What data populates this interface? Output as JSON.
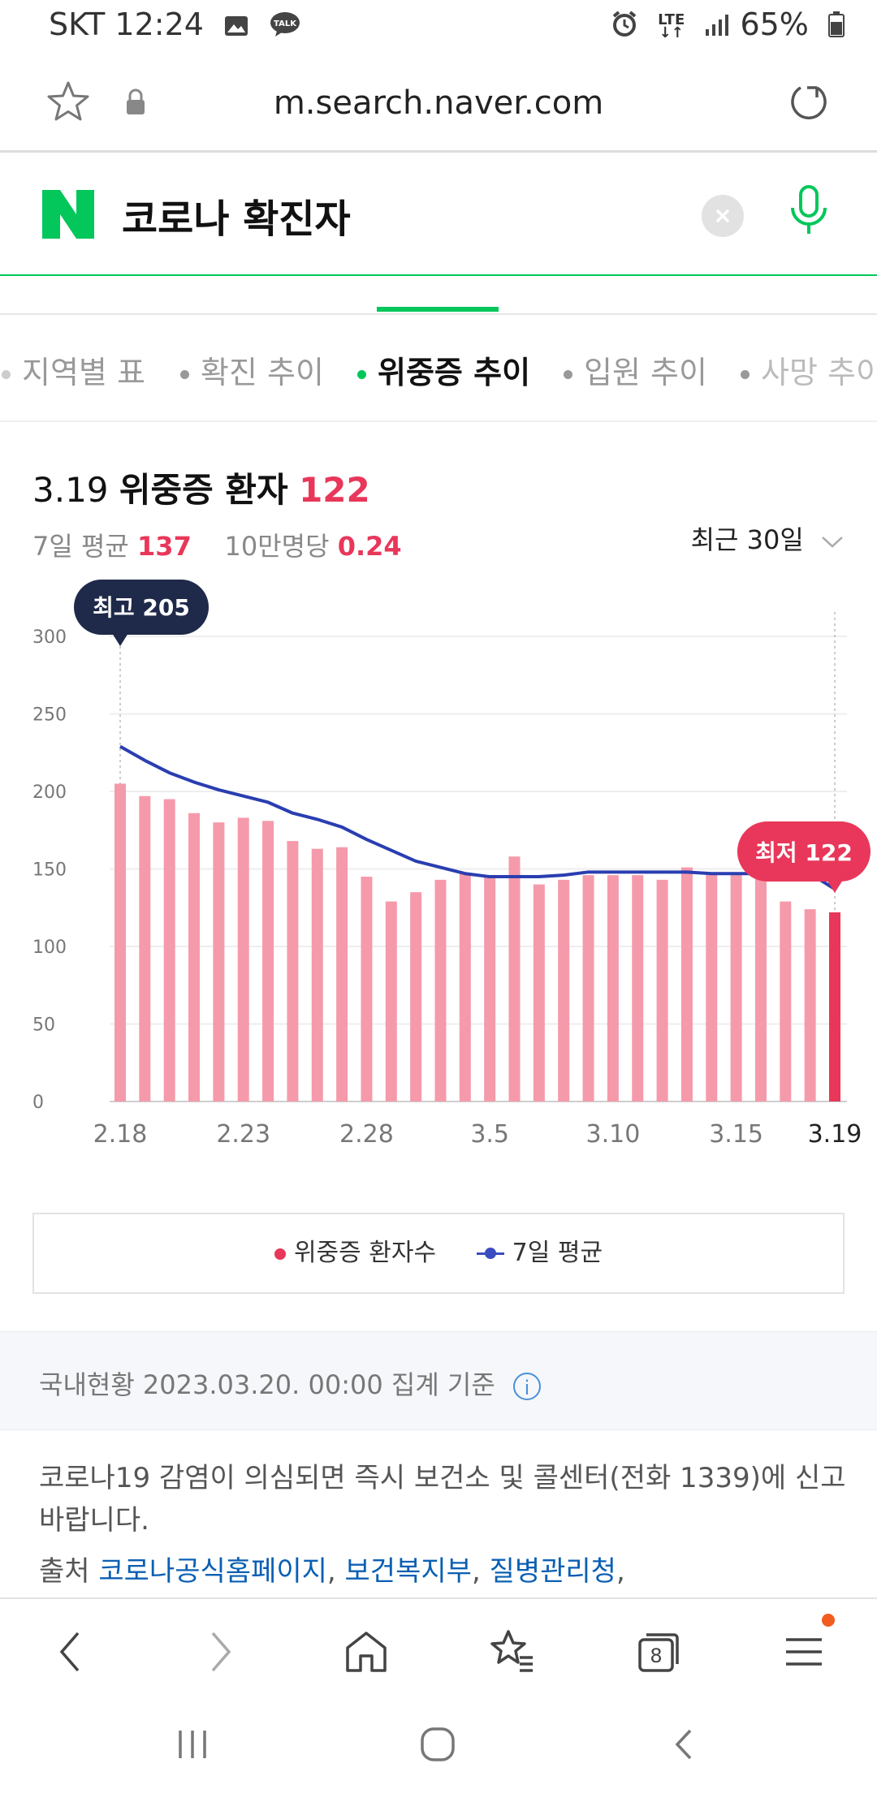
{
  "status_bar": {
    "carrier": "SKT",
    "time": "12:24",
    "network": "LTE",
    "battery": "65%"
  },
  "address_bar": {
    "url": "m.search.naver.com"
  },
  "search": {
    "logo": "N",
    "query": "코로나 확진자"
  },
  "sub_tabs": [
    {
      "label": "지역별 표"
    },
    {
      "label": "확진 추이"
    },
    {
      "label": "위중증 추이",
      "active": true
    },
    {
      "label": "입원 추이"
    },
    {
      "label": "사망 추이"
    }
  ],
  "stats": {
    "date": "3.19",
    "label": "위중증 환자",
    "value": "122",
    "avg_label": "7일 평균",
    "avg_value": "137",
    "per100k_label": "10만명당",
    "per100k_value": "0.24",
    "period": "최근 30일"
  },
  "chart_data": {
    "type": "bar",
    "categories": [
      "2.18",
      "2.19",
      "2.20",
      "2.21",
      "2.22",
      "2.23",
      "2.24",
      "2.25",
      "2.26",
      "2.27",
      "2.28",
      "3.1",
      "3.2",
      "3.3",
      "3.4",
      "3.5",
      "3.6",
      "3.7",
      "3.8",
      "3.9",
      "3.10",
      "3.11",
      "3.12",
      "3.13",
      "3.14",
      "3.15",
      "3.16",
      "3.17",
      "3.18",
      "3.19"
    ],
    "x_tick_labels": [
      "2.18",
      "2.23",
      "2.28",
      "3.5",
      "3.10",
      "3.15",
      "3.19"
    ],
    "series": [
      {
        "name": "위중증 환자수",
        "type": "bar",
        "color": "#f59aaa",
        "highlight_color": "#e8375a",
        "values": [
          205,
          197,
          195,
          186,
          180,
          183,
          181,
          168,
          163,
          164,
          145,
          129,
          135,
          143,
          147,
          145,
          158,
          140,
          143,
          146,
          146,
          146,
          143,
          151,
          147,
          146,
          150,
          129,
          124,
          122
        ]
      },
      {
        "name": "7일 평균",
        "type": "line",
        "color": "#2a3eb1",
        "values": [
          229,
          220,
          212,
          206,
          201,
          197,
          193,
          186,
          182,
          177,
          169,
          162,
          155,
          151,
          147,
          145,
          145,
          145,
          146,
          148,
          148,
          148,
          148,
          148,
          147,
          147,
          147,
          147,
          147,
          137
        ]
      }
    ],
    "ylim": [
      0,
      300
    ],
    "y_ticks": [
      "0",
      "50",
      "100",
      "150",
      "200",
      "250",
      "300"
    ],
    "annotations": {
      "max_label": "최고 205",
      "min_label": "최저 122"
    }
  },
  "legend": {
    "bar_label": "위중증 환자수",
    "line_label": "7일 평균"
  },
  "info": {
    "status": "국내현황 2023.03.20. 00:00 집계 기준",
    "notice": "코로나19 감염이 의심되면 즉시 보건소 및 콜센터(전화 1339)에 신고 바랍니다.",
    "source_label": "출처",
    "sources": [
      "코로나공식홈페이지",
      "보건복지부",
      "질병관리청"
    ]
  },
  "toolbar": {
    "tab_count": "8"
  }
}
